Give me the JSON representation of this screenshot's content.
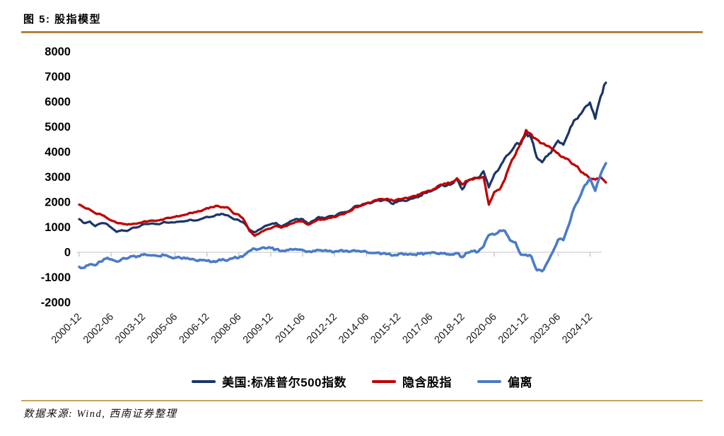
{
  "figure": {
    "title": "图 5: 股指模型",
    "source": "数据来源: Wind, 西南证券整理"
  },
  "colors": {
    "rule_top": "#B5813B",
    "rule_bottom": "#C9A35E",
    "axis_line": "#CFCFCF",
    "tick_mark": "#BDBDBD",
    "axis_text": "#1A1A1A"
  },
  "chart_data": {
    "type": "line",
    "title": "股指模型",
    "xlabel": "",
    "ylabel": "",
    "ylim": [
      -2000,
      8000
    ],
    "grid": false,
    "legend_position": "bottom",
    "yticks": [
      8000,
      7000,
      6000,
      5000,
      4000,
      3000,
      2000,
      1000,
      0,
      -1000,
      -2000
    ],
    "xtick_labels": [
      "2000-12",
      "2002-06",
      "2003-12",
      "2005-06",
      "2006-12",
      "2008-06",
      "2009-12",
      "2011-06",
      "2012-12",
      "2014-06",
      "2015-12",
      "2017-06",
      "2018-12",
      "2020-06",
      "2021-12",
      "2023-06",
      "2024-12"
    ],
    "categories": [
      "2000-12",
      "2001-03",
      "2001-06",
      "2001-09",
      "2001-12",
      "2002-03",
      "2002-06",
      "2002-09",
      "2002-12",
      "2003-03",
      "2003-06",
      "2003-09",
      "2003-12",
      "2004-03",
      "2004-06",
      "2004-09",
      "2004-12",
      "2005-03",
      "2005-06",
      "2005-09",
      "2005-12",
      "2006-03",
      "2006-06",
      "2006-09",
      "2006-12",
      "2007-03",
      "2007-06",
      "2007-09",
      "2007-12",
      "2008-03",
      "2008-06",
      "2008-09",
      "2008-12",
      "2009-03",
      "2009-06",
      "2009-09",
      "2009-12",
      "2010-03",
      "2010-06",
      "2010-09",
      "2010-12",
      "2011-03",
      "2011-06",
      "2011-09",
      "2011-12",
      "2012-03",
      "2012-06",
      "2012-09",
      "2012-12",
      "2013-03",
      "2013-06",
      "2013-09",
      "2013-12",
      "2014-03",
      "2014-06",
      "2014-09",
      "2014-12",
      "2015-03",
      "2015-06",
      "2015-09",
      "2015-12",
      "2016-03",
      "2016-06",
      "2016-09",
      "2016-12",
      "2017-03",
      "2017-06",
      "2017-09",
      "2017-12",
      "2018-03",
      "2018-06",
      "2018-09",
      "2018-12",
      "2019-03",
      "2019-06",
      "2019-09",
      "2019-12",
      "2020-03",
      "2020-06",
      "2020-09",
      "2020-12",
      "2021-03",
      "2021-06",
      "2021-09",
      "2021-12",
      "2022-03",
      "2022-06",
      "2022-09",
      "2022-12",
      "2023-03",
      "2023-06",
      "2023-09",
      "2023-12",
      "2024-03",
      "2024-06",
      "2024-09",
      "2024-12",
      "2025-03",
      "2025-06",
      "2025-09"
    ],
    "series": [
      {
        "name": "美国:标准普尔500指数",
        "color": "#1A3668",
        "values": [
          1320,
          1160,
          1224,
          1040,
          1148,
          1147,
          990,
          815,
          880,
          848,
          975,
          996,
          1112,
          1126,
          1141,
          1115,
          1212,
          1181,
          1191,
          1229,
          1248,
          1295,
          1270,
          1336,
          1418,
          1421,
          1503,
          1527,
          1468,
          1323,
          1280,
          1166,
          903,
          798,
          919,
          1057,
          1115,
          1169,
          1031,
          1141,
          1258,
          1326,
          1321,
          1131,
          1258,
          1408,
          1362,
          1441,
          1426,
          1569,
          1606,
          1682,
          1848,
          1872,
          1960,
          1972,
          2059,
          2068,
          2063,
          1920,
          2044,
          2060,
          2099,
          2168,
          2239,
          2363,
          2423,
          2519,
          2674,
          2641,
          2718,
          2914,
          2507,
          2834,
          2942,
          2977,
          3231,
          2585,
          3100,
          3363,
          3756,
          3973,
          4298,
          4308,
          4766,
          4530,
          3785,
          3586,
          3840,
          4109,
          4450,
          4288,
          4770,
          5254,
          5460,
          5762,
          5970,
          5320,
          6205,
          6760
        ]
      },
      {
        "name": "隐含股指",
        "color": "#C00000",
        "values": [
          1900,
          1780,
          1700,
          1560,
          1520,
          1400,
          1270,
          1180,
          1150,
          1100,
          1130,
          1150,
          1210,
          1240,
          1260,
          1270,
          1330,
          1370,
          1410,
          1450,
          1500,
          1570,
          1600,
          1650,
          1760,
          1800,
          1850,
          1800,
          1780,
          1550,
          1500,
          1280,
          850,
          660,
          780,
          900,
          950,
          1050,
          980,
          1050,
          1150,
          1220,
          1230,
          1100,
          1200,
          1320,
          1300,
          1380,
          1400,
          1500,
          1550,
          1650,
          1800,
          1850,
          1950,
          2000,
          2080,
          2120,
          2130,
          2050,
          2120,
          2150,
          2180,
          2250,
          2300,
          2400,
          2450,
          2550,
          2700,
          2720,
          2800,
          2950,
          2700,
          2850,
          2900,
          2950,
          3000,
          1900,
          2400,
          2500,
          2900,
          3500,
          3900,
          4400,
          4870,
          4700,
          4500,
          4340,
          4240,
          4100,
          3950,
          3800,
          3700,
          3500,
          3300,
          3100,
          2950,
          2900,
          3000,
          2780
        ]
      },
      {
        "name": "偏离",
        "color": "#4B7BC8",
        "values": [
          -580,
          -620,
          -476,
          -520,
          -372,
          -253,
          -280,
          -365,
          -270,
          -252,
          -155,
          -154,
          -98,
          -114,
          -119,
          -155,
          -118,
          -189,
          -219,
          -221,
          -252,
          -275,
          -330,
          -314,
          -342,
          -379,
          -347,
          -273,
          -312,
          -227,
          -220,
          -114,
          53,
          138,
          139,
          157,
          165,
          119,
          51,
          91,
          108,
          106,
          91,
          31,
          58,
          88,
          62,
          61,
          26,
          69,
          56,
          32,
          48,
          22,
          10,
          -28,
          -21,
          -52,
          -67,
          -130,
          -76,
          -90,
          -81,
          -82,
          -61,
          -37,
          -27,
          -31,
          -26,
          -79,
          -82,
          -36,
          -193,
          -16,
          42,
          27,
          231,
          685,
          700,
          863,
          856,
          473,
          398,
          -92,
          -104,
          -170,
          -715,
          -754,
          -400,
          9,
          500,
          488,
          1070,
          1754,
          2160,
          2662,
          2950,
          2450,
          3100,
          3550
        ]
      }
    ]
  }
}
